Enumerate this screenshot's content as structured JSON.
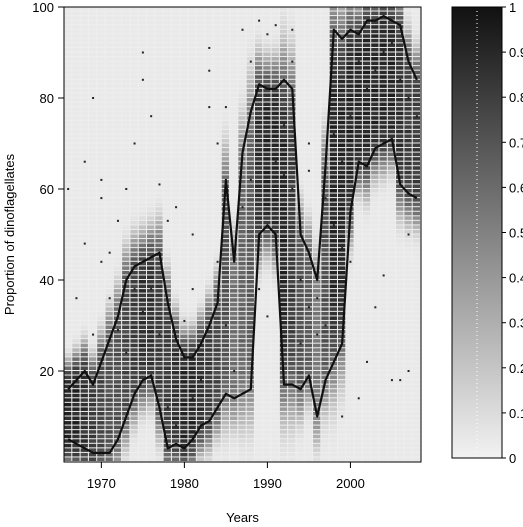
{
  "chart_data": {
    "type": "heatmap",
    "title": "",
    "xlabel": "Years",
    "ylabel": "Proportion of dinoflagellates",
    "xlim": [
      1965.5,
      2008.5
    ],
    "ylim": [
      0,
      100
    ],
    "x_ticks": [
      1970,
      1980,
      1990,
      2000
    ],
    "y_ticks": [
      20,
      40,
      60,
      80,
      100
    ],
    "colorbar": {
      "range": [
        0,
        1
      ],
      "ticks": [
        0,
        0.1,
        0.2,
        0.3,
        0.4,
        0.5,
        0.6,
        0.7,
        0.8,
        0.9,
        1
      ],
      "colors": [
        "#f2f2f2",
        "#111111"
      ],
      "position": "right"
    },
    "heatmap": {
      "years": [
        1966,
        1967,
        1968,
        1969,
        1970,
        1971,
        1972,
        1973,
        1974,
        1975,
        1976,
        1977,
        1978,
        1979,
        1980,
        1981,
        1982,
        1983,
        1984,
        1985,
        1986,
        1987,
        1988,
        1989,
        1990,
        1991,
        1992,
        1993,
        1994,
        1995,
        1996,
        1997,
        1998,
        1999,
        2000,
        2001,
        2002,
        2003,
        2004,
        2005,
        2006,
        2007,
        2008
      ],
      "lower": [
        5,
        4,
        3,
        2,
        2,
        2,
        5,
        10,
        15,
        18,
        19,
        12,
        3,
        4,
        3,
        5,
        8,
        9,
        12,
        15,
        14,
        15,
        16,
        50,
        52,
        50,
        17,
        17,
        16,
        19,
        10,
        18,
        22,
        26,
        55,
        66,
        65,
        69,
        70,
        71,
        61,
        59,
        58
      ],
      "upper": [
        16,
        18,
        20,
        17,
        22,
        27,
        32,
        40,
        43,
        44,
        45,
        46,
        35,
        27,
        23,
        23,
        26,
        30,
        35,
        62,
        44,
        68,
        77,
        83,
        82,
        82,
        84,
        82,
        50,
        46,
        40,
        65,
        95,
        93,
        95,
        94,
        97,
        97,
        98,
        97,
        96,
        88,
        84
      ],
      "intensity": [
        0.95,
        0.95,
        0.9,
        0.85,
        0.8,
        0.75,
        0.75,
        0.8,
        0.85,
        0.9,
        0.9,
        0.85,
        0.85,
        0.9,
        0.95,
        0.95,
        0.9,
        0.85,
        0.8,
        0.75,
        0.6,
        0.65,
        0.7,
        0.9,
        0.95,
        0.95,
        0.95,
        0.85,
        0.75,
        0.7,
        0.55,
        0.75,
        0.95,
        0.95,
        0.95,
        0.95,
        0.95,
        0.95,
        0.95,
        0.95,
        0.9,
        0.85,
        0.85
      ]
    },
    "series": [
      {
        "values": [
          16,
          18,
          20,
          17,
          22,
          27,
          32,
          40,
          43,
          44,
          45,
          46,
          35,
          27,
          23,
          23,
          26,
          30,
          35,
          62,
          44,
          68,
          77,
          83,
          82,
          82,
          84,
          82,
          50,
          46,
          40,
          65,
          95,
          93,
          95,
          94,
          97,
          97,
          98,
          97,
          96,
          88,
          84
        ]
      },
      {
        "values": [
          5,
          4,
          3,
          2,
          2,
          2,
          5,
          10,
          15,
          18,
          19,
          12,
          3,
          4,
          3,
          5,
          8,
          9,
          12,
          15,
          14,
          15,
          16,
          50,
          52,
          50,
          17,
          17,
          16,
          19,
          10,
          18,
          22,
          26,
          55,
          66,
          65,
          69,
          70,
          71,
          61,
          59,
          58
        ]
      }
    ],
    "points": [
      [
        1966,
        60
      ],
      [
        1968,
        66
      ],
      [
        1969,
        80
      ],
      [
        1970,
        62
      ],
      [
        1970,
        58
      ],
      [
        1971,
        46
      ],
      [
        1972,
        53
      ],
      [
        1973,
        60
      ],
      [
        1974,
        70
      ],
      [
        1975,
        90
      ],
      [
        1975,
        84
      ],
      [
        1976,
        76
      ],
      [
        1977,
        61
      ],
      [
        1978,
        53
      ],
      [
        1979,
        56
      ],
      [
        1981,
        38
      ],
      [
        1981,
        50
      ],
      [
        1983,
        91
      ],
      [
        1983,
        86
      ],
      [
        1983,
        78
      ],
      [
        1984,
        70
      ],
      [
        1985,
        78
      ],
      [
        1986,
        46
      ],
      [
        1987,
        95
      ],
      [
        1988,
        88
      ],
      [
        1989,
        97
      ],
      [
        1990,
        94
      ],
      [
        1991,
        96
      ],
      [
        1992,
        63
      ],
      [
        1993,
        95
      ],
      [
        1993,
        88
      ],
      [
        1994,
        26
      ],
      [
        1995,
        70
      ],
      [
        1995,
        64
      ],
      [
        1996,
        36
      ],
      [
        1997,
        30
      ],
      [
        1998,
        52
      ],
      [
        1999,
        47
      ],
      [
        1999,
        10
      ],
      [
        2000,
        44
      ],
      [
        2001,
        14
      ],
      [
        2002,
        22
      ],
      [
        2003,
        34
      ],
      [
        2004,
        41
      ],
      [
        2005,
        18
      ],
      [
        2006,
        18
      ],
      [
        2007,
        20
      ],
      [
        2007,
        50
      ],
      [
        1967,
        36
      ],
      [
        1968,
        48
      ],
      [
        1969,
        28
      ],
      [
        1970,
        44
      ],
      [
        1971,
        36
      ],
      [
        1972,
        29
      ],
      [
        1973,
        24
      ],
      [
        1974,
        38
      ],
      [
        1975,
        33
      ],
      [
        1976,
        38
      ],
      [
        1977,
        28
      ],
      [
        1978,
        12
      ],
      [
        1979,
        8
      ],
      [
        1980,
        31
      ],
      [
        1981,
        14
      ],
      [
        1982,
        18
      ],
      [
        1984,
        44
      ],
      [
        1985,
        30
      ],
      [
        1986,
        20
      ],
      [
        1987,
        56
      ],
      [
        1988,
        62
      ],
      [
        1989,
        38
      ],
      [
        1990,
        32
      ],
      [
        1991,
        66
      ],
      [
        1992,
        74
      ],
      [
        1993,
        60
      ],
      [
        1994,
        40
      ],
      [
        1995,
        34
      ],
      [
        1996,
        28
      ],
      [
        1997,
        58
      ],
      [
        1998,
        72
      ],
      [
        1999,
        66
      ],
      [
        2000,
        76
      ],
      [
        2001,
        88
      ],
      [
        2002,
        82
      ],
      [
        2003,
        86
      ],
      [
        2004,
        90
      ],
      [
        2005,
        92
      ],
      [
        2006,
        84
      ],
      [
        2007,
        80
      ],
      [
        2008,
        76
      ]
    ]
  }
}
